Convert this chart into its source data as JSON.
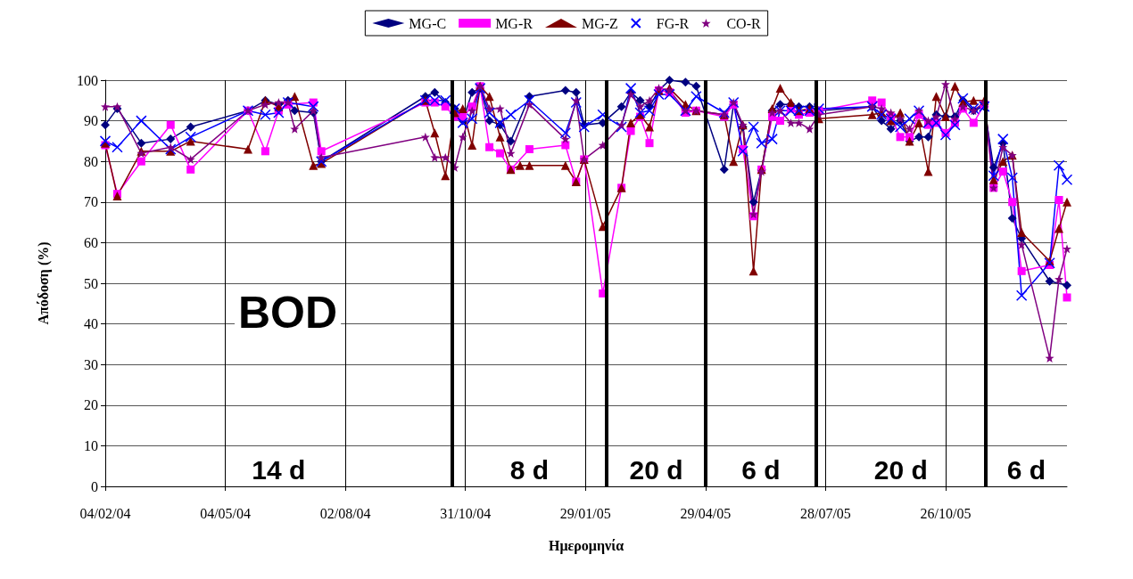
{
  "chart_data": {
    "type": "line",
    "title": "BOD",
    "xlabel": "Ημερομηνία",
    "ylabel": "Απόδοση (%)",
    "xlim": [
      "2004-02-04",
      "2006-01-25"
    ],
    "xticks": [
      {
        "value": "2004-02-04",
        "label": "04/02/04"
      },
      {
        "value": "2004-05-04",
        "label": "04/05/04"
      },
      {
        "value": "2004-08-02",
        "label": "02/08/04"
      },
      {
        "value": "2004-10-31",
        "label": "31/10/04"
      },
      {
        "value": "2005-01-29",
        "label": "29/01/05"
      },
      {
        "value": "2005-04-29",
        "label": "29/04/05"
      },
      {
        "value": "2005-07-28",
        "label": "28/07/05"
      },
      {
        "value": "2005-10-26",
        "label": "26/10/05"
      }
    ],
    "ylim": [
      0,
      100
    ],
    "yticks": [
      0,
      10,
      20,
      30,
      40,
      50,
      60,
      70,
      80,
      90,
      100
    ],
    "grid": true,
    "legend": "top",
    "line_style": "solid",
    "series": [
      {
        "name": "MG-C",
        "color": "#000080",
        "marker": "diamond",
        "x": [
          "2004-02-04",
          "2004-02-13",
          "2004-03-02",
          "2004-03-24",
          "2004-04-08",
          "2004-05-21",
          "2004-06-03",
          "2004-06-13",
          "2004-06-20",
          "2004-06-25",
          "2004-07-09",
          "2004-07-15",
          "2004-10-01",
          "2004-10-08",
          "2004-10-16",
          "2004-10-23",
          "2004-10-29",
          "2004-11-05",
          "2004-11-11",
          "2004-11-18",
          "2004-11-26",
          "2004-12-04",
          "2004-12-18",
          "2005-01-14",
          "2005-01-22",
          "2005-01-28",
          "2005-02-11",
          "2005-02-25",
          "2005-03-04",
          "2005-03-11",
          "2005-03-18",
          "2005-03-25",
          "2005-04-02",
          "2005-04-14",
          "2005-04-22",
          "2005-05-13",
          "2005-05-20",
          "2005-05-27",
          "2005-06-04",
          "2005-06-10",
          "2005-06-18",
          "2005-06-24",
          "2005-07-02",
          "2005-07-08",
          "2005-07-16",
          "2005-07-23",
          "2005-09-01",
          "2005-09-08",
          "2005-09-15",
          "2005-09-22",
          "2005-09-29",
          "2005-10-06",
          "2005-10-13",
          "2005-10-19",
          "2005-10-26",
          "2005-11-02",
          "2005-11-08",
          "2005-11-16",
          "2005-11-24",
          "2005-12-01",
          "2005-12-08",
          "2005-12-15",
          "2005-12-22",
          "2006-01-12",
          "2006-01-25"
        ],
        "values": [
          89,
          93,
          84.5,
          85.5,
          88.5,
          92.5,
          95,
          94,
          95,
          92.5,
          92,
          80,
          96,
          97,
          94.5,
          93,
          90,
          97,
          98,
          90,
          89,
          85,
          96,
          97.5,
          97,
          89,
          89.5,
          93.5,
          97,
          95,
          93.5,
          97.5,
          100,
          99.5,
          98.5,
          78,
          94,
          88.5,
          70,
          78,
          92.5,
          94,
          94,
          93.5,
          93.5,
          92.5,
          93.5,
          90,
          88,
          90,
          85,
          86,
          86,
          91.5,
          91,
          91,
          95,
          92.5,
          93.5,
          78.5,
          84.5,
          66,
          61,
          50.5,
          49.5
        ]
      },
      {
        "name": "MG-R",
        "color": "#ff00ff",
        "marker": "square",
        "x": [
          "2004-02-04",
          "2004-02-13",
          "2004-03-02",
          "2004-03-24",
          "2004-04-08",
          "2004-05-21",
          "2004-06-03",
          "2004-06-13",
          "2004-06-20",
          "2004-07-09",
          "2004-07-15",
          "2004-10-01",
          "2004-10-08",
          "2004-10-16",
          "2004-10-23",
          "2004-10-29",
          "2004-11-05",
          "2004-11-11",
          "2004-11-18",
          "2004-11-26",
          "2004-12-04",
          "2004-12-18",
          "2005-01-14",
          "2005-01-22",
          "2005-01-28",
          "2005-02-11",
          "2005-02-25",
          "2005-03-04",
          "2005-03-11",
          "2005-03-18",
          "2005-03-25",
          "2005-04-02",
          "2005-04-14",
          "2005-04-22",
          "2005-05-13",
          "2005-05-20",
          "2005-05-27",
          "2005-06-04",
          "2005-06-10",
          "2005-06-18",
          "2005-06-24",
          "2005-07-02",
          "2005-07-08",
          "2005-07-16",
          "2005-07-23",
          "2005-09-01",
          "2005-09-08",
          "2005-09-15",
          "2005-09-22",
          "2005-09-29",
          "2005-10-06",
          "2005-10-13",
          "2005-10-19",
          "2005-10-26",
          "2005-11-02",
          "2005-11-08",
          "2005-11-16",
          "2005-11-24",
          "2005-12-01",
          "2005-12-08",
          "2005-12-15",
          "2005-12-22",
          "2006-01-12",
          "2006-01-19",
          "2006-01-25"
        ],
        "values": [
          84,
          72,
          80,
          89,
          78,
          92.5,
          82.5,
          92.5,
          94,
          94.5,
          82.5,
          94.5,
          94.5,
          93.5,
          91,
          91,
          93.5,
          98.5,
          83.5,
          82,
          78,
          83,
          84,
          75,
          80.5,
          47.5,
          73.5,
          87.5,
          91,
          84.5,
          97.5,
          97,
          92,
          92.5,
          91,
          94,
          83,
          66.5,
          78,
          91,
          90,
          93,
          91.5,
          92,
          92.5,
          95,
          94.5,
          91,
          86,
          86,
          91.5,
          89,
          89.5,
          87,
          89.5,
          93,
          89.5,
          94,
          73.5,
          77.5,
          70,
          53,
          54.5,
          70.5,
          46.5
        ]
      },
      {
        "name": "MG-Z",
        "color": "#800000",
        "marker": "triangle",
        "x": [
          "2004-02-04",
          "2004-02-13",
          "2004-03-02",
          "2004-03-24",
          "2004-04-08",
          "2004-05-21",
          "2004-06-03",
          "2004-06-13",
          "2004-06-25",
          "2004-07-09",
          "2004-07-15",
          "2004-10-01",
          "2004-10-08",
          "2004-10-16",
          "2004-10-23",
          "2004-10-29",
          "2004-11-05",
          "2004-11-11",
          "2004-11-18",
          "2004-11-26",
          "2004-12-04",
          "2004-12-11",
          "2004-12-18",
          "2005-01-14",
          "2005-01-22",
          "2005-01-28",
          "2005-02-11",
          "2005-02-25",
          "2005-03-04",
          "2005-03-11",
          "2005-03-18",
          "2005-03-25",
          "2005-04-02",
          "2005-04-14",
          "2005-04-22",
          "2005-05-13",
          "2005-05-20",
          "2005-05-27",
          "2005-06-04",
          "2005-06-10",
          "2005-06-18",
          "2005-06-24",
          "2005-07-02",
          "2005-07-08",
          "2005-07-16",
          "2005-07-23",
          "2005-09-01",
          "2005-09-08",
          "2005-09-15",
          "2005-09-22",
          "2005-09-29",
          "2005-10-06",
          "2005-10-13",
          "2005-10-19",
          "2005-10-26",
          "2005-11-02",
          "2005-11-08",
          "2005-11-16",
          "2005-11-24",
          "2005-12-01",
          "2005-12-08",
          "2005-12-15",
          "2005-12-22",
          "2006-01-12",
          "2006-01-19",
          "2006-01-25"
        ],
        "values": [
          84.5,
          71.5,
          82.5,
          82.5,
          85,
          83,
          95,
          93.5,
          96,
          79,
          79.5,
          95,
          87,
          76.5,
          92,
          93,
          84,
          98.5,
          96,
          86,
          78,
          79,
          79,
          79,
          75,
          80.5,
          64,
          73.5,
          89.5,
          91.5,
          88.5,
          97.5,
          98,
          94,
          92.5,
          91.5,
          80,
          89,
          53,
          78,
          93,
          98,
          94.5,
          92.5,
          93,
          90.5,
          91.5,
          92,
          90,
          92,
          85,
          89.5,
          77.5,
          96,
          91,
          98.5,
          94.5,
          95,
          95,
          75.5,
          80,
          81.5,
          62.5,
          55.5,
          63.5,
          70
        ]
      },
      {
        "name": "FG-R",
        "color": "#0000ff",
        "marker": "cross",
        "x": [
          "2004-02-04",
          "2004-02-13",
          "2004-03-02",
          "2004-03-24",
          "2004-04-08",
          "2004-05-21",
          "2004-06-03",
          "2004-06-13",
          "2004-06-20",
          "2004-07-09",
          "2004-07-15",
          "2004-10-01",
          "2004-10-08",
          "2004-10-16",
          "2004-10-23",
          "2004-10-29",
          "2004-11-05",
          "2004-11-11",
          "2004-11-18",
          "2004-11-26",
          "2004-12-04",
          "2004-12-18",
          "2005-01-14",
          "2005-01-22",
          "2005-01-28",
          "2005-02-11",
          "2005-02-25",
          "2005-03-04",
          "2005-03-11",
          "2005-03-18",
          "2005-03-25",
          "2005-04-02",
          "2005-04-14",
          "2005-04-22",
          "2005-05-13",
          "2005-05-20",
          "2005-05-27",
          "2005-06-04",
          "2005-06-10",
          "2005-06-18",
          "2005-06-24",
          "2005-07-02",
          "2005-07-08",
          "2005-07-16",
          "2005-07-23",
          "2005-09-01",
          "2005-09-08",
          "2005-09-15",
          "2005-09-22",
          "2005-09-29",
          "2005-10-06",
          "2005-10-13",
          "2005-10-19",
          "2005-10-26",
          "2005-11-02",
          "2005-11-08",
          "2005-11-16",
          "2005-11-24",
          "2005-12-01",
          "2005-12-08",
          "2005-12-15",
          "2005-12-22",
          "2006-01-12",
          "2006-01-19",
          "2006-01-25"
        ],
        "values": [
          85,
          83.5,
          90,
          83,
          86,
          92.5,
          91.5,
          92,
          94.5,
          93.5,
          80,
          95,
          95,
          95,
          93,
          89.5,
          90.5,
          98,
          92,
          89.5,
          91.5,
          95,
          87,
          94.5,
          88.5,
          91.5,
          88.5,
          98,
          92,
          92.5,
          96.5,
          96.5,
          92.5,
          96,
          92,
          94.5,
          82.5,
          88.5,
          84.5,
          85.5,
          92.5,
          92.5,
          92.5,
          92.5,
          93,
          93.5,
          91.5,
          90.5,
          88.5,
          90.5,
          92.5,
          89.5,
          89.5,
          86.5,
          89,
          95.5,
          93,
          93.5,
          76.5,
          85.5,
          76,
          47,
          55,
          79,
          75.5
        ]
      },
      {
        "name": "CO-R",
        "color": "#800080",
        "marker": "star",
        "x": [
          "2004-02-04",
          "2004-02-13",
          "2004-03-02",
          "2004-03-24",
          "2004-04-08",
          "2004-05-21",
          "2004-06-03",
          "2004-06-13",
          "2004-06-20",
          "2004-06-25",
          "2004-07-09",
          "2004-07-15",
          "2004-10-01",
          "2004-10-08",
          "2004-10-16",
          "2004-10-23",
          "2004-10-29",
          "2004-11-05",
          "2004-11-11",
          "2004-11-18",
          "2004-11-26",
          "2004-12-04",
          "2004-12-18",
          "2005-01-14",
          "2005-01-22",
          "2005-01-28",
          "2005-02-11",
          "2005-02-25",
          "2005-03-04",
          "2005-03-11",
          "2005-03-18",
          "2005-03-25",
          "2005-04-02",
          "2005-04-14",
          "2005-04-22",
          "2005-05-13",
          "2005-05-20",
          "2005-05-27",
          "2005-06-04",
          "2005-06-10",
          "2005-06-18",
          "2005-06-24",
          "2005-07-02",
          "2005-07-08",
          "2005-07-16",
          "2005-07-23",
          "2005-09-01",
          "2005-09-08",
          "2005-09-15",
          "2005-09-22",
          "2005-09-29",
          "2005-10-06",
          "2005-10-13",
          "2005-10-19",
          "2005-10-26",
          "2005-11-02",
          "2005-11-08",
          "2005-11-16",
          "2005-11-24",
          "2005-12-01",
          "2005-12-08",
          "2005-12-15",
          "2005-12-22",
          "2006-01-12",
          "2006-01-19",
          "2006-01-25"
        ],
        "values": [
          93.5,
          93.5,
          82,
          83.5,
          80.5,
          92.5,
          94,
          94.5,
          94.5,
          88,
          92.5,
          81,
          86,
          81,
          81,
          78.5,
          86,
          92.5,
          98.5,
          93,
          93,
          82,
          94,
          85.5,
          95,
          80.5,
          84,
          89,
          96.5,
          93.5,
          95,
          98,
          97.5,
          92.5,
          92.5,
          91.5,
          94.5,
          89,
          67,
          77.5,
          92,
          92.5,
          89.5,
          89.5,
          88,
          91.5,
          93.5,
          93,
          92,
          90.5,
          88,
          92.5,
          90,
          91,
          99,
          90.5,
          93.5,
          92.5,
          94.5,
          73.5,
          83.5,
          81.5,
          59.5,
          31.6,
          51,
          58.5
        ]
      }
    ],
    "ref_lines": [
      {
        "axis": "x",
        "value": "2004-10-21",
        "color": "#000000"
      },
      {
        "axis": "x",
        "value": "2005-02-14",
        "color": "#000000"
      },
      {
        "axis": "x",
        "value": "2005-04-29",
        "color": "#000000"
      },
      {
        "axis": "x",
        "value": "2005-07-21",
        "color": "#000000"
      },
      {
        "axis": "x",
        "value": "2005-11-25",
        "color": "#000000"
      }
    ],
    "annotations": [
      "14 d",
      "8 d",
      "20 d",
      "6 d",
      "20 d",
      "6 d"
    ]
  }
}
